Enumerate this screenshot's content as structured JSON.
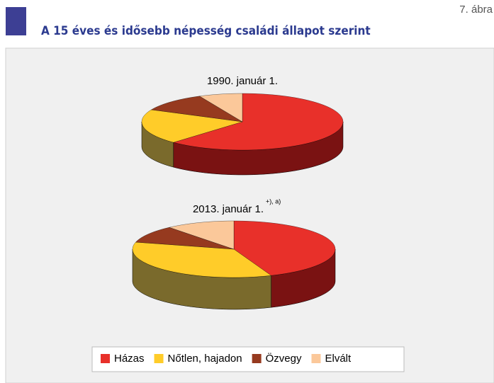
{
  "figure_label": "7. ábra",
  "title": "A 15 éves és idősebb népesség családi állapot szerint",
  "chart_data": [
    {
      "type": "pie3d",
      "title": "1990. január 1.",
      "categories": [
        "Házas",
        "Nőtlen, hajadon",
        "Özvegy",
        "Elvált"
      ],
      "values": [
        62,
        20,
        11,
        7
      ],
      "colors": [
        "#e8302a",
        "#ffcc29",
        "#963a1f",
        "#fbc89a"
      ],
      "side_colors": [
        "#7a1212",
        "#7a6a2c",
        "#5a2210",
        "#9a7a5a"
      ]
    },
    {
      "type": "pie3d",
      "title": "2013. január 1.",
      "note": "+), a)",
      "categories": [
        "Házas",
        "Nőtlen, hajadon",
        "Özvegy",
        "Elvált"
      ],
      "values": [
        44,
        35,
        10,
        11
      ],
      "colors": [
        "#e8302a",
        "#ffcc29",
        "#963a1f",
        "#fbc89a"
      ],
      "side_colors": [
        "#7a1212",
        "#7a6a2c",
        "#5a2210",
        "#9a7a5a"
      ]
    }
  ]
}
